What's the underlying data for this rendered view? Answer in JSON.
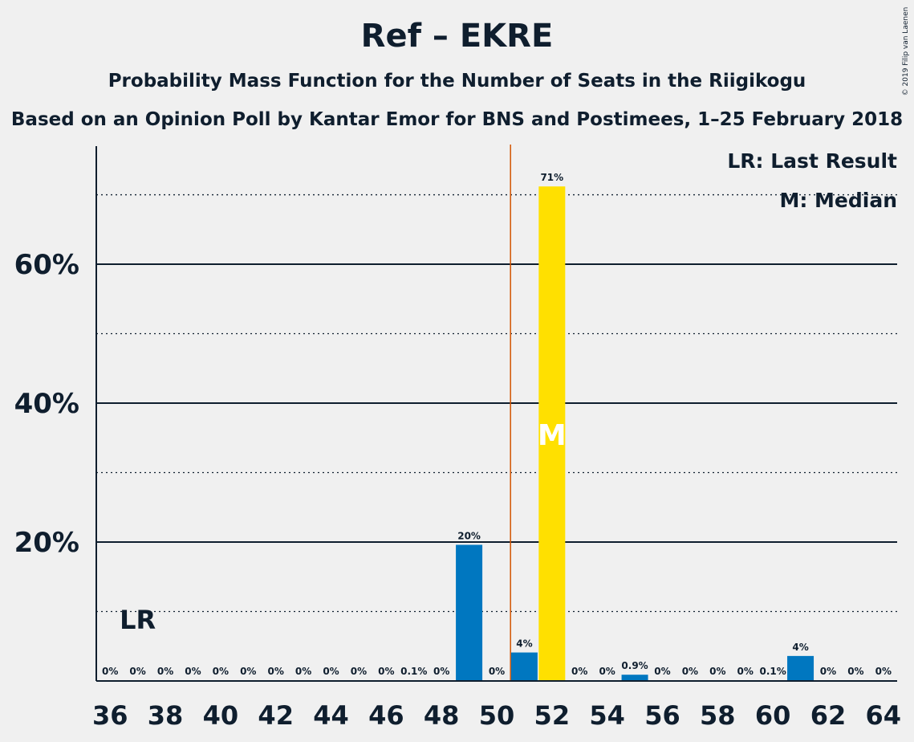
{
  "title": "Ref – EKRE",
  "subtitle": "Probability Mass Function for the Number of Seats in the Riigikogu",
  "subtitle2": "Based on an Opinion Poll by Kantar Emor for BNS and Postimees, 1–25 February 2018",
  "copyright": "© 2019 Filip van Laenen",
  "legend": {
    "last_result": "LR: Last Result",
    "median": "M: Median"
  },
  "colors": {
    "bar": "#0077c0",
    "median_bar": "#ffe000",
    "threshold_line": "#d35400",
    "text": "#0f1e2e",
    "background": "#f0f0f0"
  },
  "chart_data": {
    "type": "bar",
    "title": "Ref – EKRE",
    "xlabel": "",
    "ylabel": "",
    "ylim": [
      0,
      77
    ],
    "yticks": [
      {
        "value": 20,
        "label": "20%"
      },
      {
        "value": 40,
        "label": "40%"
      },
      {
        "value": 60,
        "label": "60%"
      }
    ],
    "x": [
      36,
      37,
      38,
      39,
      40,
      41,
      42,
      43,
      44,
      45,
      46,
      47,
      48,
      49,
      50,
      51,
      52,
      53,
      54,
      55,
      56,
      57,
      58,
      59,
      60,
      61,
      62,
      63,
      64
    ],
    "values": [
      0,
      0,
      0,
      0,
      0,
      0,
      0,
      0,
      0,
      0,
      0,
      0.1,
      0,
      19.6,
      0,
      4.1,
      71.2,
      0,
      0,
      0.9,
      0,
      0,
      0,
      0,
      0.1,
      3.6,
      0,
      0,
      0
    ],
    "data_labels": [
      "0%",
      "0%",
      "0%",
      "0%",
      "0%",
      "0%",
      "0%",
      "0%",
      "0%",
      "0%",
      "0%",
      "0.1%",
      "0%",
      "20%",
      "0%",
      "4%",
      "71%",
      "0%",
      "0%",
      "0.9%",
      "0%",
      "0%",
      "0%",
      "0%",
      "0.1%",
      "4%",
      "0%",
      "0%",
      "0%"
    ],
    "xtick_labels": [
      "36",
      "38",
      "40",
      "42",
      "44",
      "46",
      "48",
      "50",
      "52",
      "54",
      "56",
      "58",
      "60",
      "62",
      "64"
    ],
    "last_result_seat": 37,
    "last_result_label": "LR",
    "median_seat": 52,
    "median_label": "M",
    "majority_line_at": 50.5,
    "grid": true,
    "legend_placement": "top-right"
  }
}
